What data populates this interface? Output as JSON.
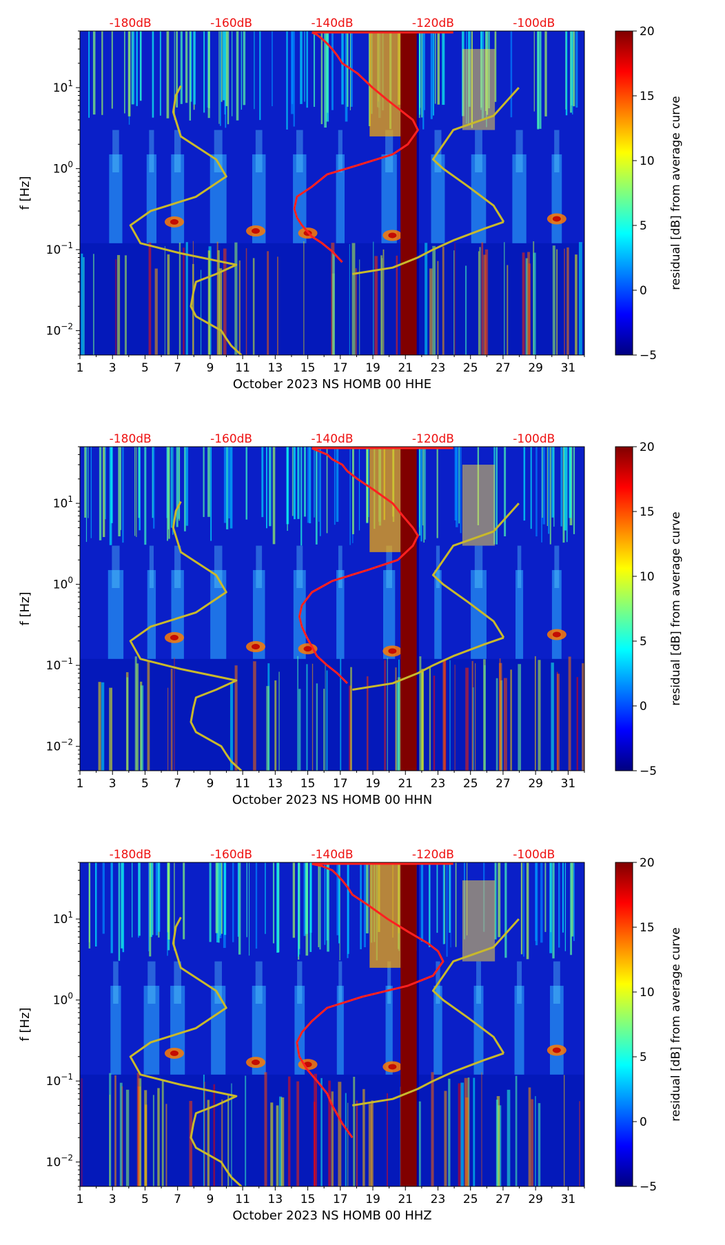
{
  "chart_data": [
    {
      "type": "heatmap",
      "xlabel": "October 2023 NS HOMB 00 HHE",
      "ylabel": "f [Hz]",
      "x_ticks": [
        "1",
        "3",
        "5",
        "7",
        "9",
        "11",
        "13",
        "15",
        "17",
        "19",
        "21",
        "23",
        "25",
        "27",
        "29",
        "31"
      ],
      "y_ticks": [
        "10−2",
        "10−1",
        "100",
        "101"
      ],
      "top_ticks": [
        "-180dB",
        "-160dB",
        "-140dB",
        "-120dB",
        "-100dB"
      ],
      "colorbar": {
        "label": "residual [dB] from average curve",
        "ticks": [
          "20",
          "15",
          "10",
          "5",
          "0",
          "−5"
        ],
        "range": [
          -5,
          20
        ]
      },
      "xlim": [
        1,
        32
      ],
      "ylim_hz": [
        0.005,
        50
      ],
      "yscale": "log",
      "red_curve": {
        "x_db": [
          -144,
          -143,
          -142,
          -141,
          -140,
          -139,
          -138,
          -135,
          -132,
          -129,
          -126,
          -124,
          -123,
          -125,
          -128,
          -135,
          -141,
          -144,
          -147,
          -147.5,
          -147,
          -146,
          -145,
          -144,
          -142,
          -140,
          -138
        ],
        "f_hz": [
          48,
          45,
          40,
          35,
          30,
          25,
          20,
          15,
          10,
          7,
          5,
          4,
          3,
          2,
          1.5,
          1.1,
          0.85,
          0.6,
          0.45,
          0.32,
          0.25,
          0.2,
          0.17,
          0.145,
          0.12,
          0.095,
          0.07
        ]
      },
      "yellow_curve": {
        "x_db": [
          -170,
          -171,
          -171.5,
          -170,
          -163,
          -161,
          -167,
          -176,
          -180,
          -178,
          -170,
          -159,
          -163,
          -167,
          -167.5,
          -168,
          -167,
          -162,
          -161,
          -160,
          -158
        ],
        "f_hz": [
          10.5,
          8,
          5,
          2.5,
          1.3,
          0.8,
          0.45,
          0.3,
          0.2,
          0.12,
          0.09,
          0.065,
          0.05,
          0.04,
          0.03,
          0.02,
          0.015,
          0.01,
          0.008,
          0.0065,
          0.005
        ]
      },
      "yellow_curve_2": {
        "x_db": [
          -136,
          -128,
          -123,
          -120,
          -116,
          -110,
          -106
        ],
        "f_hz": [
          0.05,
          0.06,
          0.08,
          0.1,
          0.13,
          0.18,
          0.22
        ]
      },
      "yellow_curve_3": {
        "x_db": [
          -106,
          -108,
          -113,
          -118,
          -120,
          -116,
          -108,
          -103
        ],
        "f_hz": [
          0.22,
          0.35,
          0.6,
          1.0,
          1.3,
          3,
          4.5,
          10
        ]
      }
    },
    {
      "type": "heatmap",
      "xlabel": "October 2023 NS HOMB 00 HHN",
      "ylabel": "f [Hz]",
      "x_ticks": [
        "1",
        "3",
        "5",
        "7",
        "9",
        "11",
        "13",
        "15",
        "17",
        "19",
        "21",
        "23",
        "25",
        "27",
        "29",
        "31"
      ],
      "y_ticks": [
        "10−2",
        "10−1",
        "100",
        "101"
      ],
      "top_ticks": [
        "-180dB",
        "-160dB",
        "-140dB",
        "-120dB",
        "-100dB"
      ],
      "colorbar": {
        "label": "residual [dB] from average curve",
        "ticks": [
          "20",
          "15",
          "10",
          "5",
          "0",
          "−5"
        ],
        "range": [
          -5,
          20
        ]
      },
      "xlim": [
        1,
        32
      ],
      "ylim_hz": [
        0.005,
        50
      ],
      "yscale": "log",
      "red_curve": {
        "x_db": [
          -144,
          -143,
          -141,
          -140,
          -138,
          -137,
          -135,
          -132,
          -128,
          -126,
          -124,
          -123,
          -124,
          -127,
          -133,
          -140,
          -144,
          -146,
          -146.5,
          -146,
          -145,
          -144,
          -143,
          -141,
          -139,
          -137
        ],
        "f_hz": [
          48,
          45,
          40,
          35,
          30,
          25,
          20,
          15,
          10,
          7,
          5,
          4,
          3,
          2,
          1.5,
          1.1,
          0.8,
          0.55,
          0.4,
          0.3,
          0.22,
          0.17,
          0.13,
          0.1,
          0.08,
          0.06
        ]
      },
      "yellow_curve": {
        "x_db": [
          -170,
          -171,
          -171.5,
          -170,
          -163,
          -161,
          -167,
          -176,
          -180,
          -178,
          -170,
          -159,
          -163,
          -167,
          -167.5,
          -168,
          -167,
          -162,
          -161,
          -160,
          -158
        ],
        "f_hz": [
          10.5,
          8,
          5,
          2.5,
          1.3,
          0.8,
          0.45,
          0.3,
          0.2,
          0.12,
          0.09,
          0.065,
          0.05,
          0.04,
          0.03,
          0.02,
          0.015,
          0.01,
          0.008,
          0.0065,
          0.005
        ]
      },
      "yellow_curve_2": {
        "x_db": [
          -136,
          -128,
          -123,
          -120,
          -116,
          -110,
          -106
        ],
        "f_hz": [
          0.05,
          0.06,
          0.08,
          0.1,
          0.13,
          0.18,
          0.22
        ]
      },
      "yellow_curve_3": {
        "x_db": [
          -106,
          -108,
          -113,
          -118,
          -120,
          -116,
          -108,
          -103
        ],
        "f_hz": [
          0.22,
          0.35,
          0.6,
          1.0,
          1.3,
          3,
          4.5,
          10
        ]
      }
    },
    {
      "type": "heatmap",
      "xlabel": "October 2023 NS HOMB 00 HHZ",
      "ylabel": "f [Hz]",
      "x_ticks": [
        "1",
        "3",
        "5",
        "7",
        "9",
        "11",
        "13",
        "15",
        "17",
        "19",
        "21",
        "23",
        "25",
        "27",
        "29",
        "31"
      ],
      "y_ticks": [
        "10−2",
        "10−1",
        "100",
        "101"
      ],
      "top_ticks": [
        "-180dB",
        "-160dB",
        "-140dB",
        "-120dB",
        "-100dB"
      ],
      "colorbar": {
        "label": "residual [dB] from average curve",
        "ticks": [
          "20",
          "15",
          "10",
          "5",
          "0",
          "−5"
        ],
        "range": [
          -5,
          20
        ]
      },
      "xlim": [
        1,
        32
      ],
      "ylim_hz": [
        0.005,
        50
      ],
      "yscale": "log",
      "red_curve": {
        "x_db": [
          -144,
          -142,
          -140,
          -139,
          -138,
          -137,
          -136,
          -133,
          -129,
          -125,
          -121,
          -119,
          -118,
          -120,
          -125,
          -134,
          -141,
          -144,
          -146,
          -147,
          -146.5,
          -145,
          -143,
          -141,
          -140,
          -138,
          -136
        ],
        "f_hz": [
          48,
          45,
          40,
          35,
          30,
          25,
          20,
          15,
          10,
          7,
          5,
          4,
          3,
          2,
          1.5,
          1.1,
          0.8,
          0.55,
          0.4,
          0.3,
          0.2,
          0.14,
          0.1,
          0.07,
          0.05,
          0.03,
          0.02
        ]
      },
      "yellow_curve": {
        "x_db": [
          -170,
          -171,
          -171.5,
          -170,
          -163,
          -161,
          -167,
          -176,
          -180,
          -178,
          -170,
          -159,
          -163,
          -167,
          -167.5,
          -168,
          -167,
          -162,
          -161,
          -160,
          -158
        ],
        "f_hz": [
          10.5,
          8,
          5,
          2.5,
          1.3,
          0.8,
          0.45,
          0.3,
          0.2,
          0.12,
          0.09,
          0.065,
          0.05,
          0.04,
          0.03,
          0.02,
          0.015,
          0.01,
          0.008,
          0.0065,
          0.005
        ]
      },
      "yellow_curve_2": {
        "x_db": [
          -136,
          -128,
          -123,
          -120,
          -116,
          -110,
          -106
        ],
        "f_hz": [
          0.05,
          0.06,
          0.08,
          0.1,
          0.13,
          0.18,
          0.22
        ]
      },
      "yellow_curve_3": {
        "x_db": [
          -106,
          -108,
          -113,
          -118,
          -120,
          -116,
          -108,
          -103
        ],
        "f_hz": [
          0.22,
          0.35,
          0.6,
          1.0,
          1.3,
          3,
          4.5,
          10
        ]
      }
    }
  ]
}
